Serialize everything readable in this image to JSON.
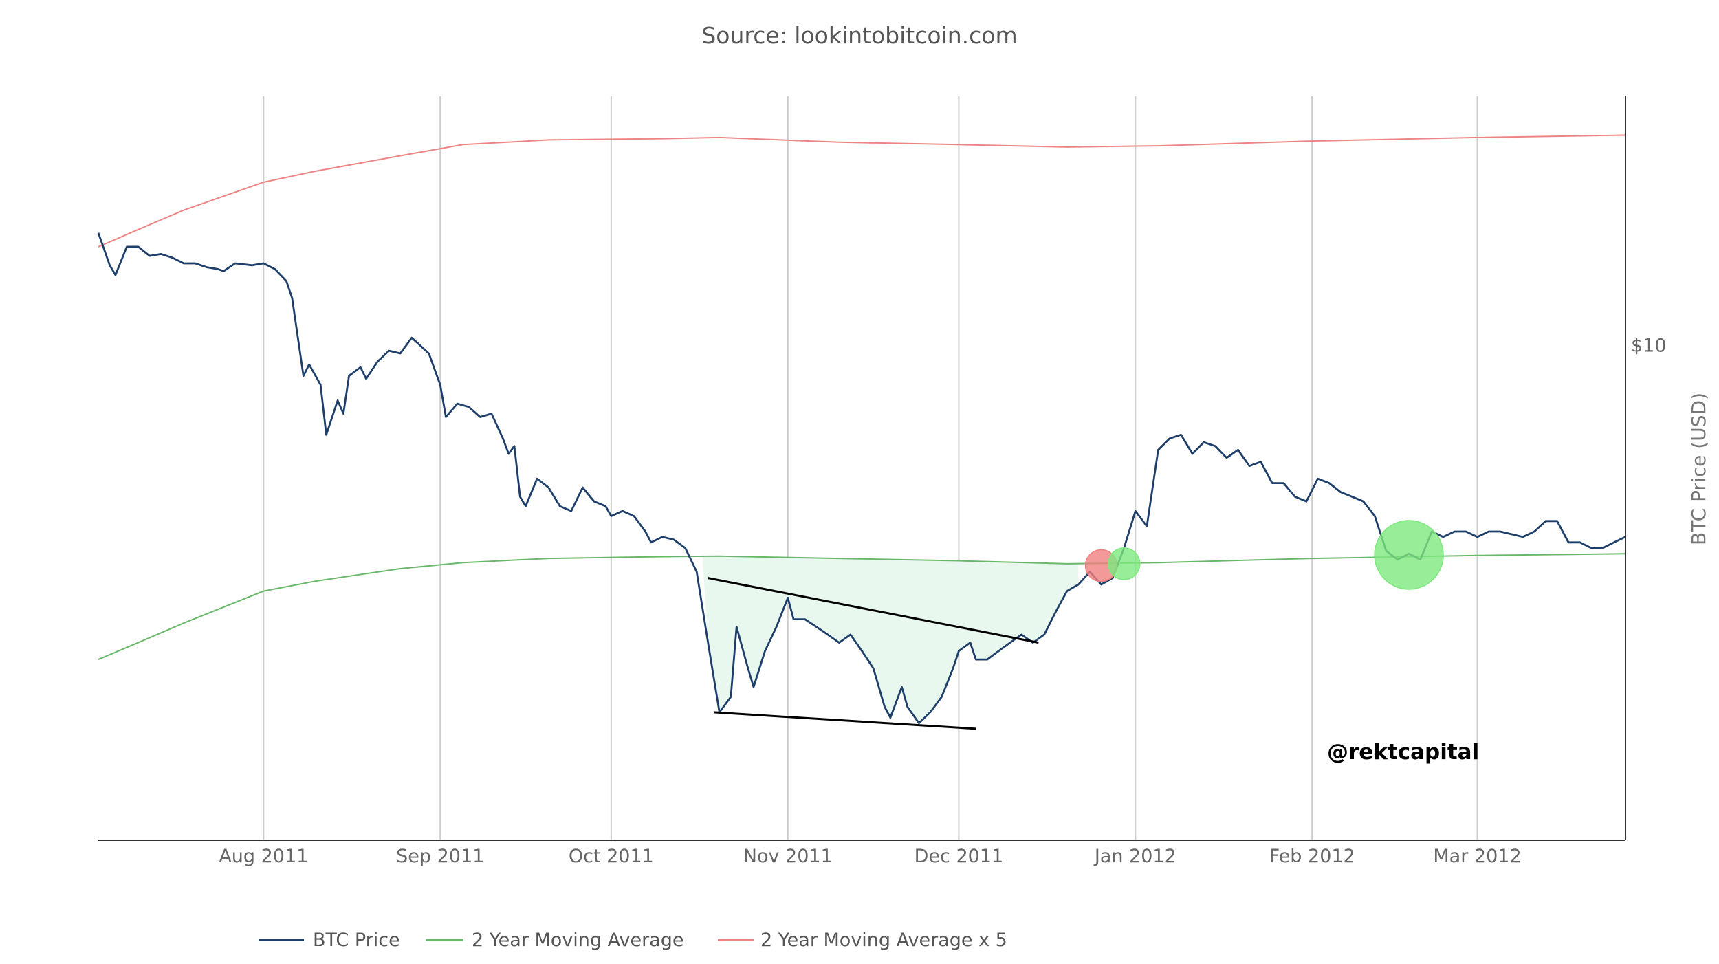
{
  "chart_data": {
    "type": "line",
    "title": "Source: lookintobitcoin.com",
    "ylabel": "BTC Price (USD)",
    "y_scale": "log",
    "y_ticks": [
      {
        "value": 10,
        "label": "$10"
      }
    ],
    "x_ticks": [
      {
        "date": "2011-08-01",
        "label": "Aug 2011"
      },
      {
        "date": "2011-09-01",
        "label": "Sep 2011"
      },
      {
        "date": "2011-10-01",
        "label": "Oct 2011"
      },
      {
        "date": "2011-11-01",
        "label": "Nov 2011"
      },
      {
        "date": "2011-12-01",
        "label": "Dec 2011"
      },
      {
        "date": "2012-01-01",
        "label": "Jan 2012"
      },
      {
        "date": "2012-02-01",
        "label": "Feb 2012"
      },
      {
        "date": "2012-03-01",
        "label": "Mar 2012"
      }
    ],
    "xlim": [
      "2011-07-03",
      "2012-03-27"
    ],
    "ylim": [
      1.5,
      26
    ],
    "grid": "vertical",
    "legend_position": "bottom-left",
    "series": [
      {
        "name": "BTC Price",
        "color": "#1f3f6b",
        "points": [
          [
            "2011-07-03",
            15.4
          ],
          [
            "2011-07-05",
            13.6
          ],
          [
            "2011-07-06",
            13.1
          ],
          [
            "2011-07-08",
            14.6
          ],
          [
            "2011-07-10",
            14.6
          ],
          [
            "2011-07-12",
            14.1
          ],
          [
            "2011-07-14",
            14.2
          ],
          [
            "2011-07-16",
            14.0
          ],
          [
            "2011-07-18",
            13.7
          ],
          [
            "2011-07-20",
            13.7
          ],
          [
            "2011-07-22",
            13.5
          ],
          [
            "2011-07-24",
            13.4
          ],
          [
            "2011-07-25",
            13.3
          ],
          [
            "2011-07-27",
            13.7
          ],
          [
            "2011-07-30",
            13.6
          ],
          [
            "2011-08-01",
            13.7
          ],
          [
            "2011-08-03",
            13.4
          ],
          [
            "2011-08-05",
            12.8
          ],
          [
            "2011-08-06",
            12.0
          ],
          [
            "2011-08-08",
            8.9
          ],
          [
            "2011-08-09",
            9.3
          ],
          [
            "2011-08-11",
            8.6
          ],
          [
            "2011-08-12",
            7.1
          ],
          [
            "2011-08-14",
            8.1
          ],
          [
            "2011-08-15",
            7.7
          ],
          [
            "2011-08-16",
            8.9
          ],
          [
            "2011-08-18",
            9.2
          ],
          [
            "2011-08-19",
            8.8
          ],
          [
            "2011-08-21",
            9.4
          ],
          [
            "2011-08-23",
            9.8
          ],
          [
            "2011-08-25",
            9.7
          ],
          [
            "2011-08-27",
            10.3
          ],
          [
            "2011-08-30",
            9.7
          ],
          [
            "2011-09-01",
            8.6
          ],
          [
            "2011-09-02",
            7.6
          ],
          [
            "2011-09-04",
            8.0
          ],
          [
            "2011-09-06",
            7.9
          ],
          [
            "2011-09-08",
            7.6
          ],
          [
            "2011-09-10",
            7.7
          ],
          [
            "2011-09-12",
            7.0
          ],
          [
            "2011-09-13",
            6.6
          ],
          [
            "2011-09-14",
            6.8
          ],
          [
            "2011-09-15",
            5.6
          ],
          [
            "2011-09-16",
            5.4
          ],
          [
            "2011-09-18",
            6.0
          ],
          [
            "2011-09-20",
            5.8
          ],
          [
            "2011-09-22",
            5.4
          ],
          [
            "2011-09-24",
            5.3
          ],
          [
            "2011-09-26",
            5.8
          ],
          [
            "2011-09-28",
            5.5
          ],
          [
            "2011-09-30",
            5.4
          ],
          [
            "2011-10-01",
            5.2
          ],
          [
            "2011-10-03",
            5.3
          ],
          [
            "2011-10-05",
            5.2
          ],
          [
            "2011-10-07",
            4.9
          ],
          [
            "2011-10-08",
            4.7
          ],
          [
            "2011-10-10",
            4.8
          ],
          [
            "2011-10-12",
            4.75
          ],
          [
            "2011-10-14",
            4.6
          ],
          [
            "2011-10-16",
            4.2
          ],
          [
            "2011-10-18",
            3.2
          ],
          [
            "2011-10-20",
            2.45
          ],
          [
            "2011-10-22",
            2.6
          ],
          [
            "2011-10-23",
            3.4
          ],
          [
            "2011-10-25",
            2.9
          ],
          [
            "2011-10-26",
            2.7
          ],
          [
            "2011-10-28",
            3.1
          ],
          [
            "2011-10-30",
            3.4
          ],
          [
            "2011-11-01",
            3.8
          ],
          [
            "2011-11-02",
            3.5
          ],
          [
            "2011-11-04",
            3.5
          ],
          [
            "2011-11-06",
            3.4
          ],
          [
            "2011-11-08",
            3.3
          ],
          [
            "2011-11-10",
            3.2
          ],
          [
            "2011-11-12",
            3.3
          ],
          [
            "2011-11-14",
            3.1
          ],
          [
            "2011-11-16",
            2.9
          ],
          [
            "2011-11-18",
            2.5
          ],
          [
            "2011-11-19",
            2.4
          ],
          [
            "2011-11-21",
            2.7
          ],
          [
            "2011-11-22",
            2.5
          ],
          [
            "2011-11-24",
            2.35
          ],
          [
            "2011-11-26",
            2.45
          ],
          [
            "2011-11-28",
            2.6
          ],
          [
            "2011-11-30",
            2.9
          ],
          [
            "2011-12-01",
            3.1
          ],
          [
            "2011-12-03",
            3.2
          ],
          [
            "2011-12-04",
            3.0
          ],
          [
            "2011-12-06",
            3.0
          ],
          [
            "2011-12-08",
            3.1
          ],
          [
            "2011-12-10",
            3.2
          ],
          [
            "2011-12-12",
            3.3
          ],
          [
            "2011-12-14",
            3.2
          ],
          [
            "2011-12-16",
            3.3
          ],
          [
            "2011-12-18",
            3.6
          ],
          [
            "2011-12-20",
            3.9
          ],
          [
            "2011-12-22",
            4.0
          ],
          [
            "2011-12-24",
            4.2
          ],
          [
            "2011-12-26",
            4.0
          ],
          [
            "2011-12-28",
            4.1
          ],
          [
            "2011-12-30",
            4.6
          ],
          [
            "2012-01-01",
            5.3
          ],
          [
            "2012-01-03",
            5.0
          ],
          [
            "2012-01-05",
            6.7
          ],
          [
            "2012-01-07",
            7.0
          ],
          [
            "2012-01-09",
            7.1
          ],
          [
            "2012-01-11",
            6.6
          ],
          [
            "2012-01-13",
            6.9
          ],
          [
            "2012-01-15",
            6.8
          ],
          [
            "2012-01-17",
            6.5
          ],
          [
            "2012-01-19",
            6.7
          ],
          [
            "2012-01-21",
            6.3
          ],
          [
            "2012-01-23",
            6.4
          ],
          [
            "2012-01-25",
            5.9
          ],
          [
            "2012-01-27",
            5.9
          ],
          [
            "2012-01-29",
            5.6
          ],
          [
            "2012-01-31",
            5.5
          ],
          [
            "2012-02-02",
            6.0
          ],
          [
            "2012-02-04",
            5.9
          ],
          [
            "2012-02-06",
            5.7
          ],
          [
            "2012-02-08",
            5.6
          ],
          [
            "2012-02-10",
            5.5
          ],
          [
            "2012-02-12",
            5.2
          ],
          [
            "2012-02-14",
            4.55
          ],
          [
            "2012-02-16",
            4.4
          ],
          [
            "2012-02-18",
            4.5
          ],
          [
            "2012-02-20",
            4.4
          ],
          [
            "2012-02-22",
            4.9
          ],
          [
            "2012-02-24",
            4.8
          ],
          [
            "2012-02-26",
            4.9
          ],
          [
            "2012-02-28",
            4.9
          ],
          [
            "2012-03-01",
            4.8
          ],
          [
            "2012-03-03",
            4.9
          ],
          [
            "2012-03-05",
            4.9
          ],
          [
            "2012-03-07",
            4.85
          ],
          [
            "2012-03-09",
            4.8
          ],
          [
            "2012-03-11",
            4.9
          ],
          [
            "2012-03-13",
            5.1
          ],
          [
            "2012-03-15",
            5.1
          ],
          [
            "2012-03-17",
            4.7
          ],
          [
            "2012-03-19",
            4.7
          ],
          [
            "2012-03-21",
            4.6
          ],
          [
            "2012-03-23",
            4.6
          ],
          [
            "2012-03-25",
            4.7
          ],
          [
            "2012-03-27",
            4.8
          ]
        ]
      },
      {
        "name": "2 Year Moving Average",
        "color": "#69b86a",
        "points": [
          [
            "2011-07-03",
            3.0
          ],
          [
            "2011-07-10",
            3.2
          ],
          [
            "2011-07-18",
            3.45
          ],
          [
            "2011-08-01",
            3.9
          ],
          [
            "2011-08-10",
            4.05
          ],
          [
            "2011-08-25",
            4.25
          ],
          [
            "2011-09-05",
            4.35
          ],
          [
            "2011-09-20",
            4.42
          ],
          [
            "2011-10-10",
            4.45
          ],
          [
            "2011-10-20",
            4.46
          ],
          [
            "2011-11-10",
            4.42
          ],
          [
            "2011-12-01",
            4.38
          ],
          [
            "2011-12-20",
            4.33
          ],
          [
            "2012-01-05",
            4.35
          ],
          [
            "2012-02-01",
            4.42
          ],
          [
            "2012-03-01",
            4.47
          ],
          [
            "2012-03-27",
            4.5
          ]
        ]
      },
      {
        "name": "2 Year Moving Average x 5",
        "color": "#ee8585",
        "points": [
          [
            "2011-07-03",
            14.6
          ],
          [
            "2011-07-10",
            15.6
          ],
          [
            "2011-07-18",
            16.8
          ],
          [
            "2011-08-01",
            18.7
          ],
          [
            "2011-08-10",
            19.5
          ],
          [
            "2011-08-25",
            20.7
          ],
          [
            "2011-09-05",
            21.6
          ],
          [
            "2011-09-20",
            22.0
          ],
          [
            "2011-10-10",
            22.1
          ],
          [
            "2011-10-20",
            22.2
          ],
          [
            "2011-11-10",
            21.8
          ],
          [
            "2011-12-01",
            21.6
          ],
          [
            "2011-12-20",
            21.4
          ],
          [
            "2012-01-05",
            21.5
          ],
          [
            "2012-02-01",
            21.9
          ],
          [
            "2012-03-01",
            22.2
          ],
          [
            "2012-03-27",
            22.4
          ]
        ]
      }
    ],
    "shaded_region": {
      "from": "2011-10-17",
      "to": "2011-12-22",
      "color": "#e8f8ee"
    },
    "trendlines": [
      {
        "from": [
          "2011-10-18",
          4.1
        ],
        "to": [
          "2011-12-15",
          3.2
        ]
      },
      {
        "from": [
          "2011-10-19",
          2.45
        ],
        "to": [
          "2011-12-04",
          2.3
        ]
      }
    ],
    "markers": [
      {
        "date": "2011-12-26",
        "value": 4.3,
        "color": "#f08080",
        "size": "small"
      },
      {
        "date": "2011-12-30",
        "value": 4.33,
        "color": "#7ee87e",
        "size": "small"
      },
      {
        "date": "2012-02-18",
        "value": 4.48,
        "color": "#7ee87e",
        "size": "large"
      }
    ],
    "annotations": [
      "@rektcapital"
    ]
  }
}
